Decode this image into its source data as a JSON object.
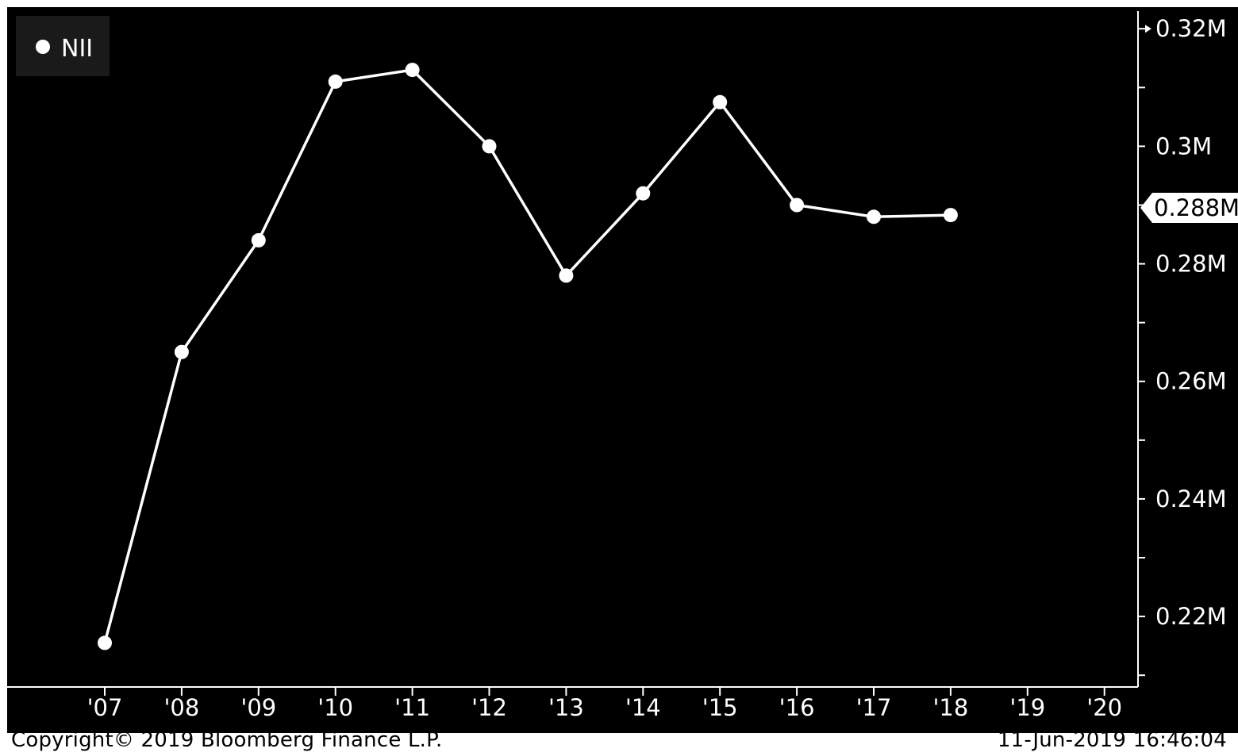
{
  "chart_data": {
    "type": "line",
    "legend": {
      "label": "NII",
      "placement": "top-left"
    },
    "x": [
      "'07",
      "'08",
      "'09",
      "'10",
      "'11",
      "'12",
      "'13",
      "'14",
      "'15",
      "'16",
      "'17",
      "'18"
    ],
    "x_ticks": [
      "'07",
      "'08",
      "'09",
      "'10",
      "'11",
      "'12",
      "'13",
      "'14",
      "'15",
      "'16",
      "'17",
      "'18",
      "'19",
      "'20"
    ],
    "series": [
      {
        "name": "NII",
        "values": [
          0.2155,
          0.265,
          0.284,
          0.311,
          0.313,
          0.3,
          0.278,
          0.292,
          0.3075,
          0.29,
          0.288,
          0.2883
        ]
      }
    ],
    "y_ticks": [
      "0.22M",
      "0.24M",
      "0.26M",
      "0.28M",
      "0.3M",
      "0.32M"
    ],
    "y_tick_values": [
      0.22,
      0.24,
      0.26,
      0.28,
      0.3,
      0.32
    ],
    "ylim": [
      0.208,
      0.323
    ],
    "y_axis_side": "right",
    "last_value_label": "0.288M",
    "colors": {
      "background": "#000000",
      "line": "#ffffff",
      "frame": "#ffffff"
    }
  },
  "footer": {
    "copyright": "Copyright© 2019 Bloomberg Finance L.P.",
    "timestamp": "11-Jun-2019 16:46:04"
  }
}
